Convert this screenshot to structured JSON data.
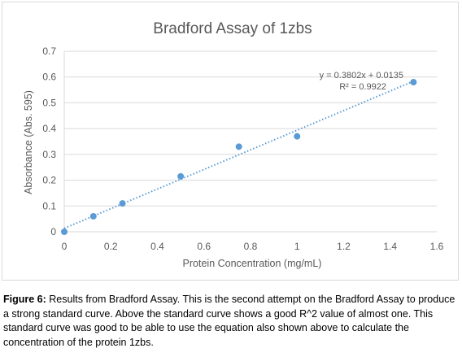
{
  "chart_data": {
    "type": "scatter",
    "title": "Bradford Assay of 1zbs",
    "xlabel": "Protein Concentration (mg/mL)",
    "ylabel": "Absorbance (Abs. 595)",
    "xlim": [
      0,
      1.6
    ],
    "ylim": [
      0,
      0.7
    ],
    "x_ticks": [
      0,
      0.2,
      0.4,
      0.6,
      0.8,
      1,
      1.2,
      1.4,
      1.6
    ],
    "x_tick_labels": [
      "0",
      "0.2",
      "0.4",
      "0.6",
      "0.8",
      "1",
      "1.2",
      "1.4",
      "1.6"
    ],
    "y_ticks": [
      0,
      0.1,
      0.2,
      0.3,
      0.4,
      0.5,
      0.6,
      0.7
    ],
    "y_tick_labels": [
      "0",
      "0.1",
      "0.2",
      "0.3",
      "0.4",
      "0.5",
      "0.6",
      "0.7"
    ],
    "grid": "horizontal",
    "series": [
      {
        "x": [
          0,
          0.125,
          0.25,
          0.5,
          0.75,
          1.0,
          1.5
        ],
        "y": [
          0.0,
          0.06,
          0.11,
          0.215,
          0.33,
          0.37,
          0.58
        ],
        "color": "#5b9bd5"
      }
    ],
    "trendline": {
      "slope": 0.3802,
      "intercept": 0.0135,
      "x_range": [
        0,
        1.5
      ],
      "style": "dotted",
      "color": "#5b9bd5",
      "equation": "y = 0.3802x + 0.0135",
      "r_squared": "R² = 0.9922"
    }
  },
  "caption": {
    "lead": "Figure 6:",
    "text": " Results from Bradford Assay. This is the second attempt on the Bradford Assay to produce a strong standard curve. Above the standard curve shows a good R^2 value of almost one. This standard curve was good to be able to use the equation also shown above to calculate the concentration of the protein 1zbs."
  }
}
